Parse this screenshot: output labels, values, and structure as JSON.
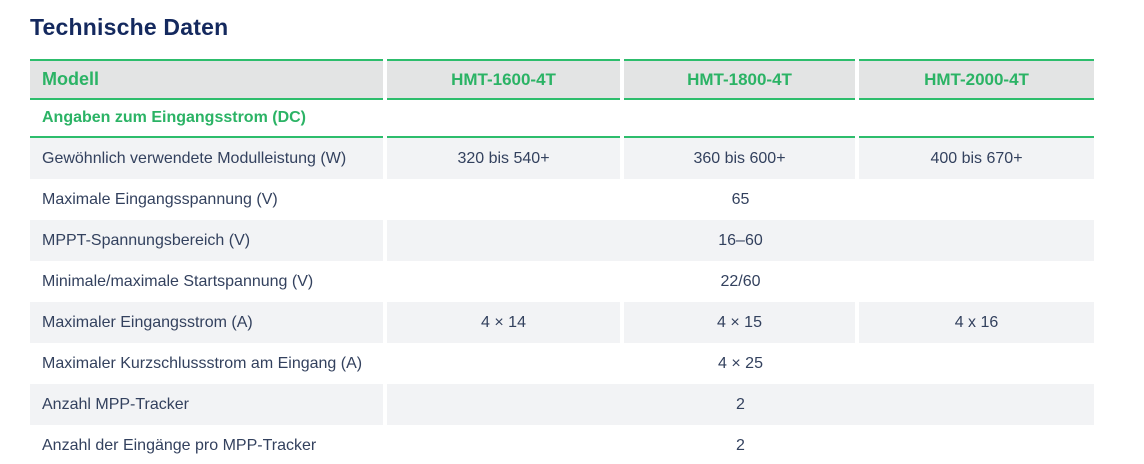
{
  "page": {
    "title": "Technische Daten"
  },
  "table": {
    "header": {
      "label": "Modell",
      "models": [
        "HMT-1600-4T",
        "HMT-1800-4T",
        "HMT-2000-4T"
      ]
    },
    "section": {
      "label": "Angaben zum Eingangsstrom (DC)"
    },
    "rows": [
      {
        "label": "Gewöhnlich verwendete Modulleistung (W)",
        "values": [
          "320 bis 540+",
          "360 bis 600+",
          "400 bis 670+"
        ]
      },
      {
        "label": "Maximale Eingangsspannung (V)",
        "merged": "65"
      },
      {
        "label": "MPPT-Spannungsbereich (V)",
        "merged": "16–60"
      },
      {
        "label": "Minimale/maximale Startspannung (V)",
        "merged": "22/60"
      },
      {
        "label": "Maximaler Eingangsstrom (A)",
        "values": [
          "4 × 14",
          "4 × 15",
          "4 x 16"
        ]
      },
      {
        "label": "Maximaler Kurzschlussstrom am Eingang (A)",
        "merged": "4 × 25"
      },
      {
        "label": "Anzahl MPP-Tracker",
        "merged": "2"
      },
      {
        "label": "Anzahl der Eingänge pro MPP-Tracker",
        "merged": "2"
      }
    ]
  },
  "colors": {
    "accent_green_border": "#2dbd6c",
    "accent_green_text": "#2bb365",
    "title_navy": "#14295e",
    "body_text": "#33415e",
    "header_cell_bg": "#e3e4e4",
    "row_alt_bg": "#f2f3f5"
  }
}
